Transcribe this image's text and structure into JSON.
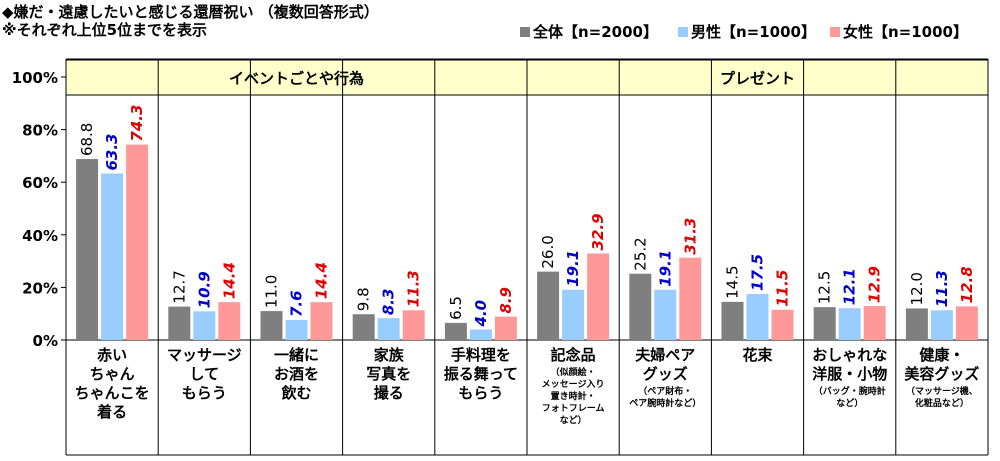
{
  "header": {
    "title": "◆嫌だ・遠慮したいと感じる還暦祝い （複数回答形式）",
    "note": "※それぞれ上位5位までを表示"
  },
  "colors": {
    "total": "#7f7f7f",
    "male": "#99ccff",
    "female": "#ff9999",
    "male_label": "#0000cc",
    "female_label": "#e00000",
    "group_band": "#ffffcc"
  },
  "chart_data": {
    "type": "bar",
    "ylim": [
      0,
      100
    ],
    "yticks": [
      "0%",
      "20%",
      "40%",
      "60%",
      "80%",
      "100%"
    ],
    "groups": [
      {
        "label": "イベントごとや行為",
        "span": [
          0,
          4
        ]
      },
      {
        "label": "プレゼント",
        "span": [
          5,
          9
        ]
      }
    ],
    "categories": [
      {
        "lines": [
          "赤い",
          "ちゃん",
          "ちゃんこを",
          "着る"
        ],
        "sub": []
      },
      {
        "lines": [
          "マッサージ",
          "して",
          "もらう"
        ],
        "sub": []
      },
      {
        "lines": [
          "一緒に",
          "お酒を",
          "飲む"
        ],
        "sub": []
      },
      {
        "lines": [
          "家族",
          "写真を",
          "撮る"
        ],
        "sub": []
      },
      {
        "lines": [
          "手料理を",
          "振る舞って",
          "もらう"
        ],
        "sub": []
      },
      {
        "lines": [
          "記念品"
        ],
        "sub": [
          "（似顔絵・",
          "メッセージ入り",
          "置き時計・",
          "フォトフレーム",
          "など）"
        ]
      },
      {
        "lines": [
          "夫婦ペア",
          "グッズ"
        ],
        "sub": [
          "（ペア財布・",
          "ペア腕時計など）"
        ]
      },
      {
        "lines": [
          "花束"
        ],
        "sub": []
      },
      {
        "lines": [
          "おしゃれな",
          "洋服・小物"
        ],
        "sub": [
          "（バッグ・腕時計",
          "など）"
        ]
      },
      {
        "lines": [
          "健康・",
          "美容グッズ"
        ],
        "sub": [
          "（マッサージ機、",
          "化粧品など）"
        ]
      }
    ],
    "series": [
      {
        "name": "全体【n=2000】",
        "color": "#7f7f7f",
        "label_color": "#000000",
        "values": [
          68.8,
          12.7,
          11.0,
          9.8,
          6.5,
          26.0,
          25.2,
          14.5,
          12.5,
          12.0
        ]
      },
      {
        "name": "男性【n=1000】",
        "color": "#99ccff",
        "label_color": "#0000cc",
        "values": [
          63.3,
          10.9,
          7.6,
          8.3,
          4.0,
          19.1,
          19.1,
          17.5,
          12.1,
          11.3
        ]
      },
      {
        "name": "女性【n=1000】",
        "color": "#ff9999",
        "label_color": "#e00000",
        "values": [
          74.3,
          14.4,
          14.4,
          11.3,
          8.9,
          32.9,
          31.3,
          11.5,
          12.9,
          12.8
        ]
      }
    ]
  }
}
